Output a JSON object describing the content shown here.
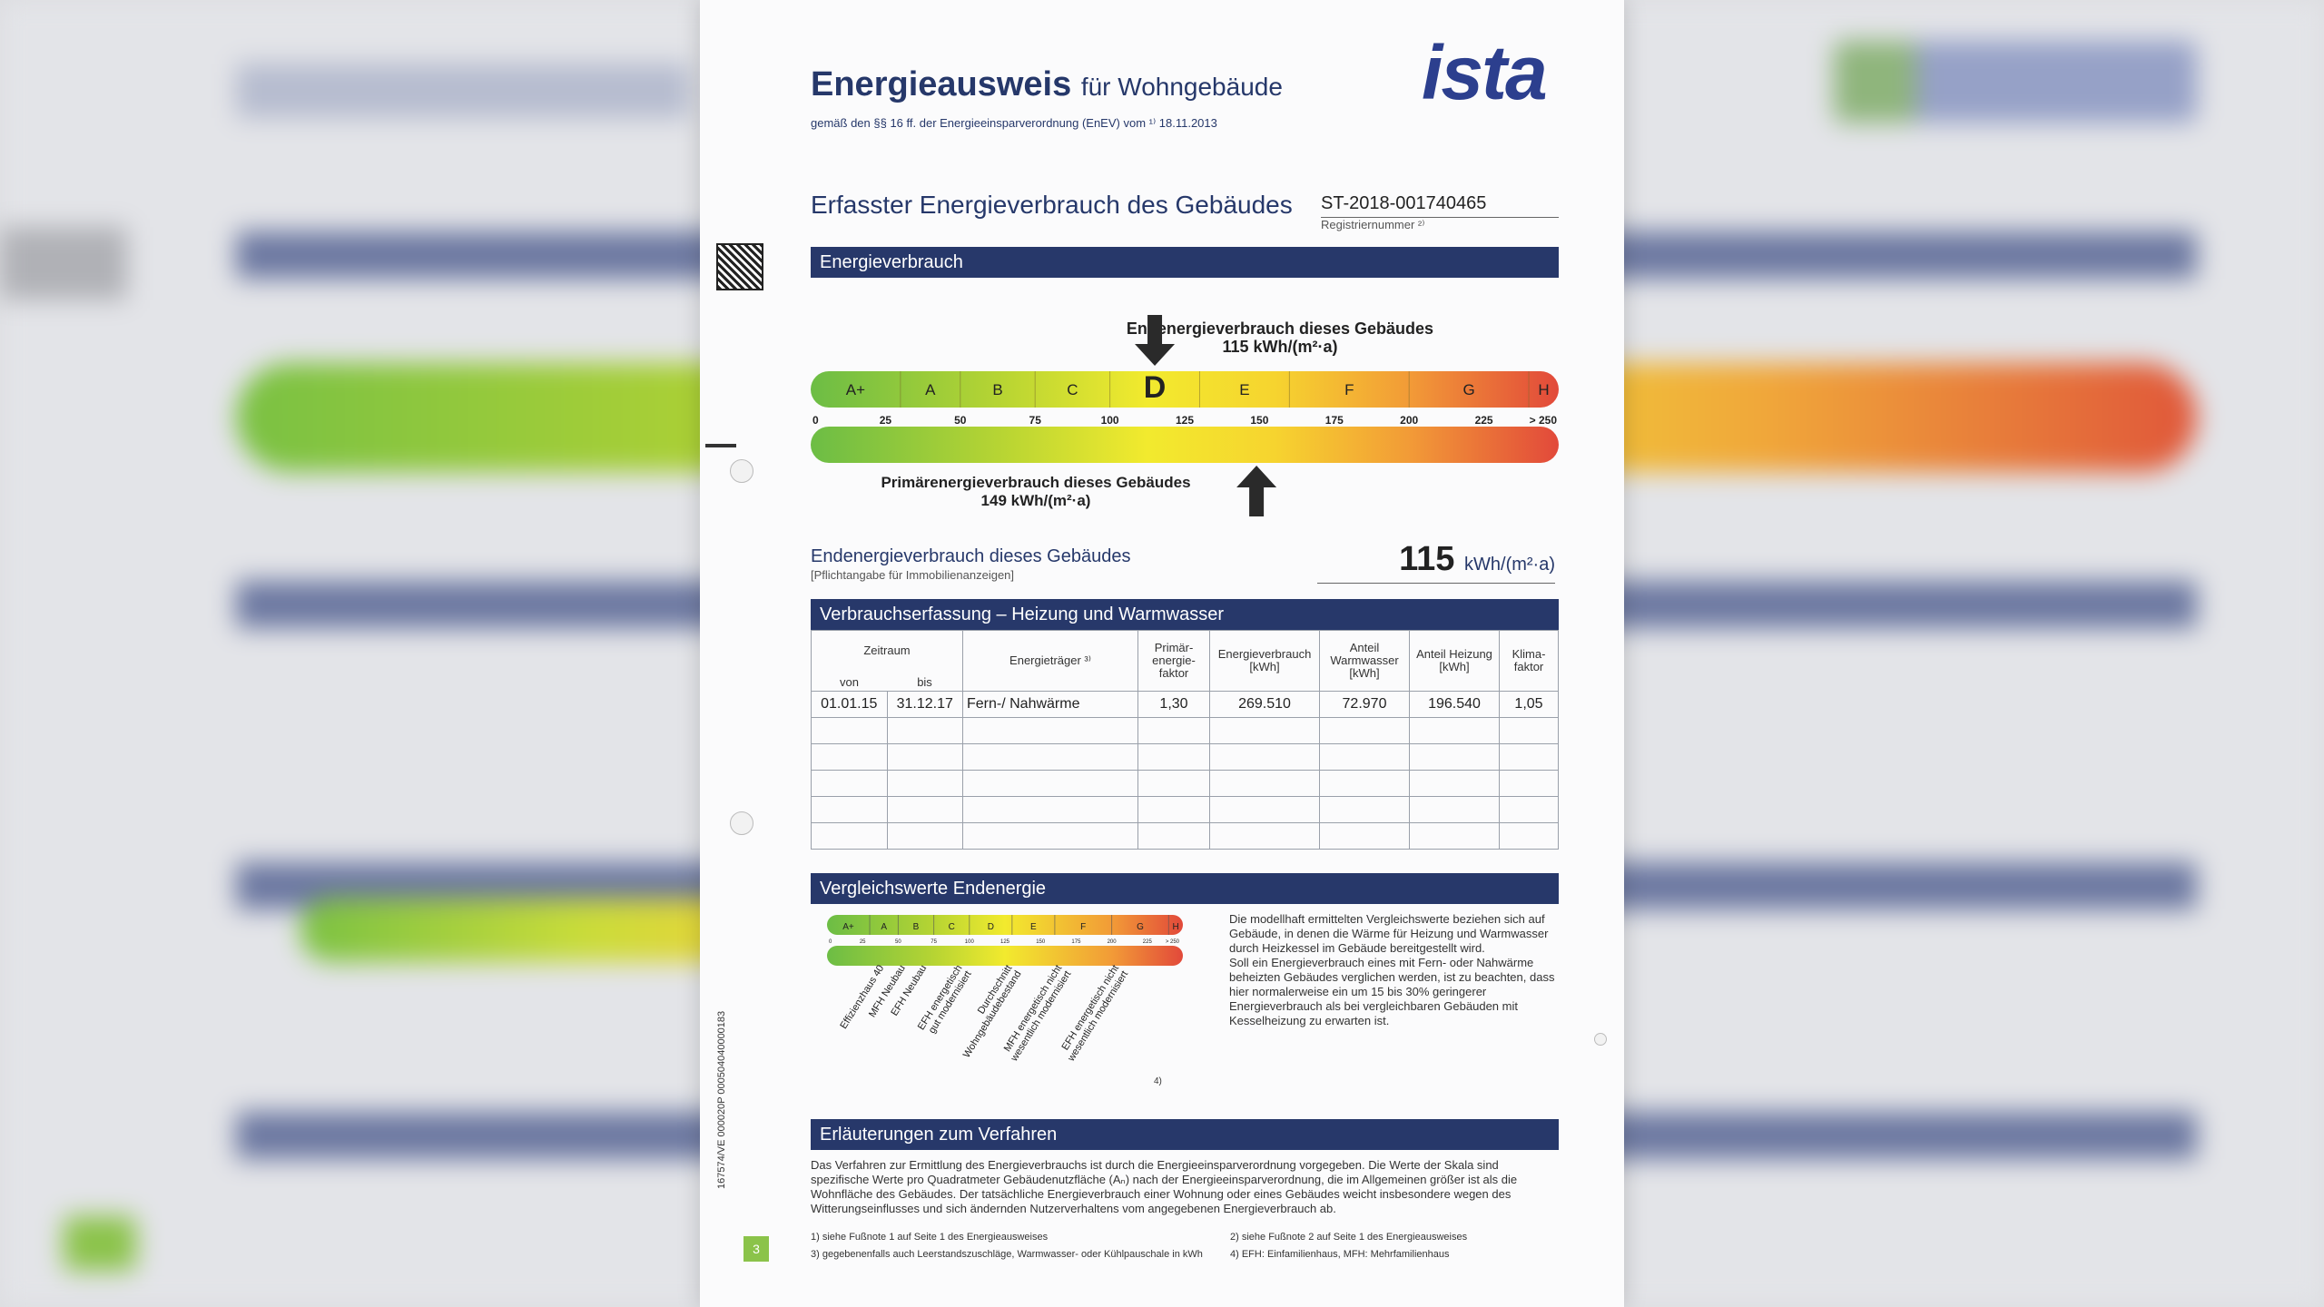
{
  "header": {
    "title_main": "Energieausweis",
    "title_rest": "für Wohngebäude",
    "subtitle": "gemäß den §§ 16 ff. der Energieeinsparverordnung (EnEV) vom ¹⁾ 18.11.2013",
    "logo": "ista"
  },
  "section": {
    "title": "Erfasster Energieverbrauch des Gebäudes",
    "registration_number": "ST-2018-001740465",
    "registration_label": "Registriernummer ²⁾"
  },
  "energy": {
    "header": "Energieverbrauch",
    "end_label": "Endenergieverbrauch dieses Gebäudes",
    "end_value": "115 kWh/(m²·a)",
    "primary_label": "Primärenergieverbrauch dieses Gebäudes",
    "primary_value": "149 kWh/(m²·a)",
    "classes": [
      "A+",
      "A",
      "B",
      "C",
      "D",
      "E",
      "F",
      "G",
      "H"
    ],
    "ticks": [
      "0",
      "25",
      "50",
      "75",
      "100",
      "125",
      "150",
      "175",
      "200",
      "225",
      "> 250"
    ],
    "highlight_class": "D",
    "end_energy_kwh": 115,
    "primary_energy_kwh": 149,
    "scale_max": 250
  },
  "summary": {
    "label": "Endenergieverbrauch dieses Gebäudes",
    "sublabel": "[Pflichtangabe für Immobilienanzeigen]",
    "value": "115",
    "unit": "kWh/(m²·a)"
  },
  "table": {
    "header": "Verbrauchserfassung – Heizung und Warmwasser",
    "col_zeitraum": "Zeitraum",
    "col_von": "von",
    "col_bis": "bis",
    "col_traeger": "Energieträger ³⁾",
    "col_primaer": "Primär- energie- faktor",
    "col_verbrauch": "Energieverbrauch [kWh]",
    "col_warmwasser": "Anteil Warmwasser [kWh]",
    "col_heizung": "Anteil Heizung [kWh]",
    "col_klima": "Klima- faktor",
    "row": {
      "von": "01.01.15",
      "bis": "31.12.17",
      "traeger": "Fern-/ Nahwärme",
      "primaer": "1,30",
      "verbrauch": "269.510",
      "warmwasser": "72.970",
      "heizung": "196.540",
      "klima": "1,05"
    }
  },
  "compare": {
    "header": "Vergleichswerte Endenergie",
    "ticks": [
      "0",
      "25",
      "50",
      "75",
      "100",
      "125",
      "150",
      "175",
      "200",
      "225",
      "> 250"
    ],
    "labels": [
      "Effizienzhaus 40",
      "MFH Neubau",
      "EFH Neubau",
      "EFH energetisch gut modernisiert",
      "Durchschnitt Wohngebäudebestand",
      "MFH energetisch nicht wesentlich modernisiert",
      "EFH energetisch nicht wesentlich modernisiert"
    ],
    "note": "4)",
    "text1": "Die modellhaft ermittelten Vergleichswerte beziehen sich auf Gebäude, in denen die Wärme für Heizung und Warmwasser durch Heizkessel im Gebäude bereitgestellt wird.",
    "text2": "Soll ein Energieverbrauch eines mit Fern- oder Nahwärme beheizten Gebäudes verglichen werden, ist zu beachten, dass hier normalerweise ein um 15 bis 30% geringerer Energieverbrauch als bei vergleichbaren Gebäuden mit Kesselheizung zu erwarten ist."
  },
  "explanation": {
    "header": "Erläuterungen zum Verfahren",
    "text": "Das Verfahren zur Ermittlung des Energieverbrauchs ist durch die Energieeinsparverordnung vorgegeben. Die Werte der Skala sind spezifische Werte pro Quadratmeter Gebäudenutzfläche (Aₙ) nach der Energieeinsparverordnung, die im Allgemeinen größer ist als die Wohnfläche des Gebäudes. Der tatsächliche Energieverbrauch einer Wohnung oder eines Gebäudes weicht insbesondere wegen des Witterungseinflusses und sich ändernden Nutzerverhaltens vom angegebenen Energieverbrauch ab."
  },
  "footnotes": {
    "f1": "1) siehe Fußnote 1 auf Seite 1 des Energieausweises",
    "f2": "2) siehe Fußnote 2 auf Seite 1 des Energieausweises",
    "f3": "3) gegebenenfalls auch Leerstandszuschläge, Warmwasser- oder Kühlpauschale in kWh",
    "f4": "4) EFH: Einfamilienhaus, MFH: Mehrfamilienhaus"
  },
  "page_number": "3",
  "side_code": "167574/VE 000020P 000504040000183"
}
